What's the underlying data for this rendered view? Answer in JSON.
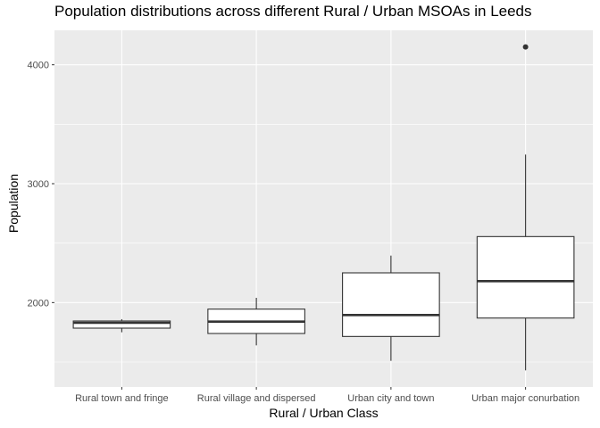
{
  "chart_data": {
    "type": "boxplot",
    "title": "Population distributions across different Rural / Urban MSOAs in Leeds",
    "xlabel": "Rural / Urban Class",
    "ylabel": "Population",
    "categories": [
      "Rural town and fringe",
      "Rural village and dispersed",
      "Urban city and town",
      "Urban major conurbation"
    ],
    "ylim": [
      1290,
      4290
    ],
    "yticks": [
      2000,
      3000,
      4000
    ],
    "boxes": [
      {
        "category": "Rural town and fringe",
        "whisker_low": 1750,
        "q1": 1785,
        "median": 1830,
        "q3": 1845,
        "whisker_high": 1860,
        "outliers": []
      },
      {
        "category": "Rural village and dispersed",
        "whisker_low": 1640,
        "q1": 1740,
        "median": 1840,
        "q3": 1945,
        "whisker_high": 2040,
        "outliers": []
      },
      {
        "category": "Urban city and town",
        "whisker_low": 1510,
        "q1": 1715,
        "median": 1895,
        "q3": 2250,
        "whisker_high": 2395,
        "outliers": []
      },
      {
        "category": "Urban major conurbation",
        "whisker_low": 1430,
        "q1": 1870,
        "median": 2180,
        "q3": 2555,
        "whisker_high": 3245,
        "outliers": [
          4150
        ]
      }
    ],
    "grid": true,
    "colors": {
      "panel": "#ebebeb",
      "grid": "#ffffff",
      "box_fill": "#ffffff",
      "box_line": "#333333"
    }
  }
}
